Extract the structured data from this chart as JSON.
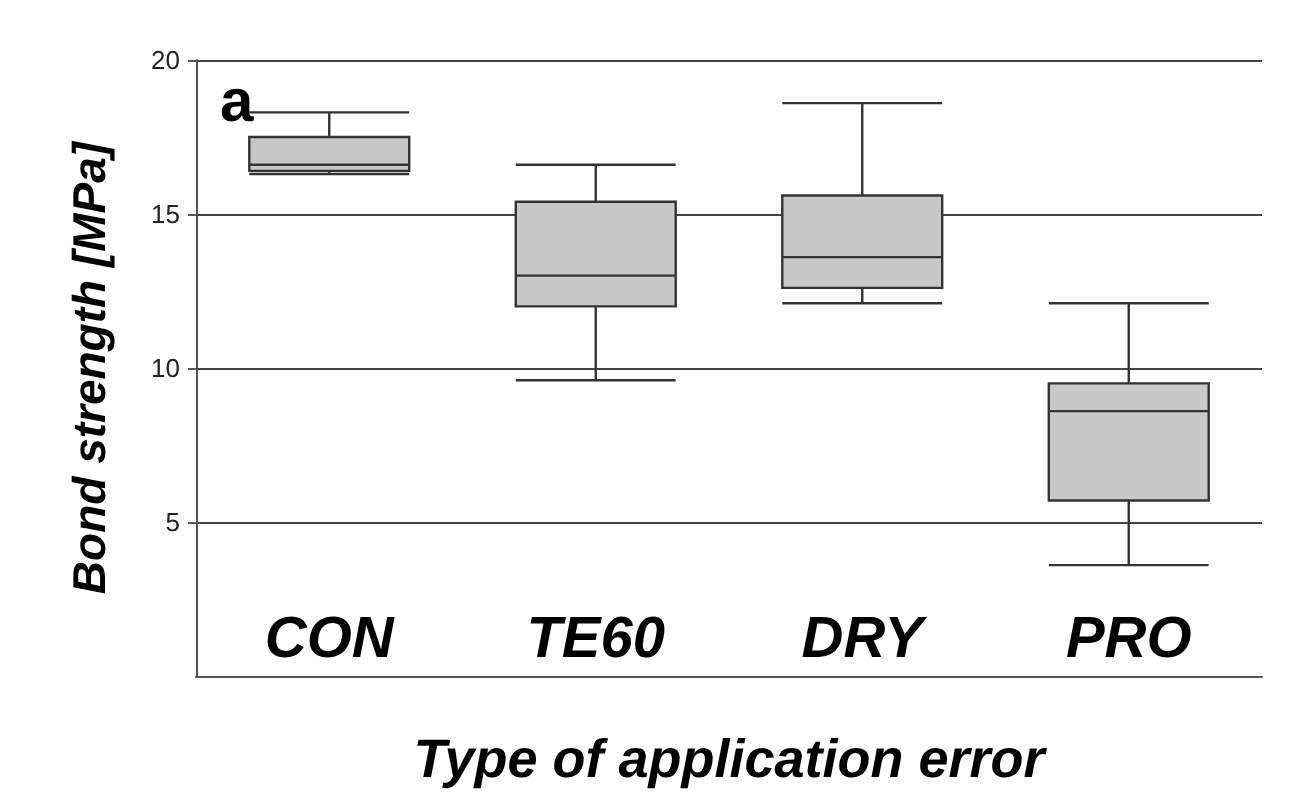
{
  "chart_data": {
    "type": "box",
    "xlabel": "Type of application error",
    "ylabel": "Bond strength [MPa]",
    "annotations": [
      "a"
    ],
    "categories": [
      "CON",
      "TE60",
      "DRY",
      "PRO"
    ],
    "boxes": [
      {
        "low": 16.3,
        "q1": 16.4,
        "median": 16.6,
        "q3": 17.5,
        "high": 18.3
      },
      {
        "low": 9.6,
        "q1": 12.0,
        "median": 13.0,
        "q3": 15.4,
        "high": 16.6
      },
      {
        "low": 12.1,
        "q1": 12.6,
        "median": 13.6,
        "q3": 15.6,
        "high": 18.6
      },
      {
        "low": 3.6,
        "q1": 5.7,
        "median": 8.6,
        "q3": 9.5,
        "high": 12.1
      }
    ],
    "color": "#c8c8c8",
    "ylim": [
      0,
      20
    ],
    "yticks": [
      5,
      10,
      15,
      20
    ],
    "grid": "y"
  }
}
